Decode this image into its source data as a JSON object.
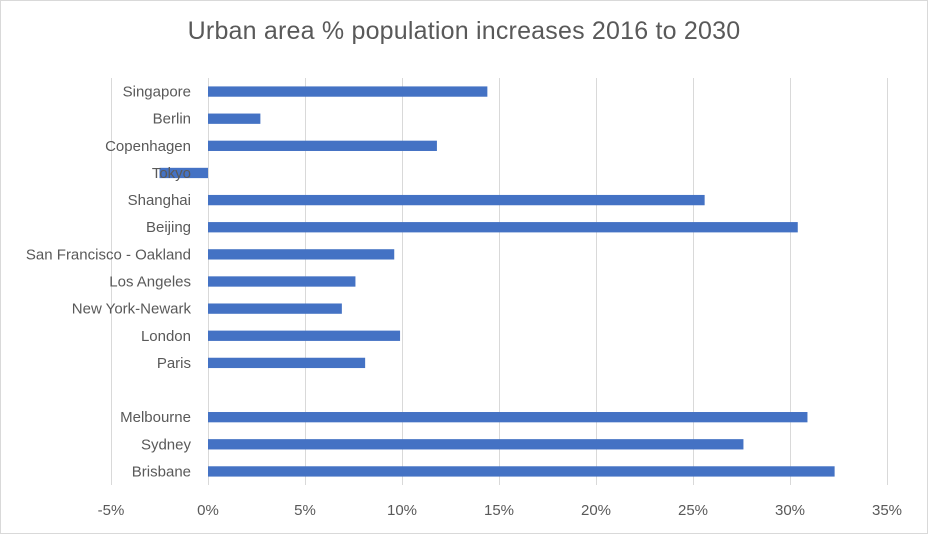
{
  "chart_data": {
    "type": "bar",
    "orientation": "horizontal",
    "title": "Urban area % population increases 2016 to 2030",
    "xlabel": "",
    "ylabel": "",
    "xlim": [
      -5,
      35
    ],
    "x_ticks": [
      -5,
      0,
      5,
      10,
      15,
      20,
      25,
      30,
      35
    ],
    "x_tick_labels": [
      "-5%",
      "0%",
      "5%",
      "10%",
      "15%",
      "20%",
      "25%",
      "30%",
      "35%"
    ],
    "grid": "vertical",
    "bar_color": "#4472C4",
    "categories": [
      "Singapore",
      "Berlin",
      "Copenhagen",
      "Tokyo",
      "Shanghai",
      "Beijing",
      "San Francisco - Oakland",
      "Los Angeles",
      "New York-Newark",
      "London",
      "Paris",
      "",
      "Melbourne",
      "Sydney",
      "Brisbane"
    ],
    "values": [
      14.4,
      2.7,
      11.8,
      -2.5,
      25.6,
      30.4,
      9.6,
      7.6,
      6.9,
      9.9,
      8.1,
      null,
      30.9,
      27.6,
      32.3
    ]
  }
}
